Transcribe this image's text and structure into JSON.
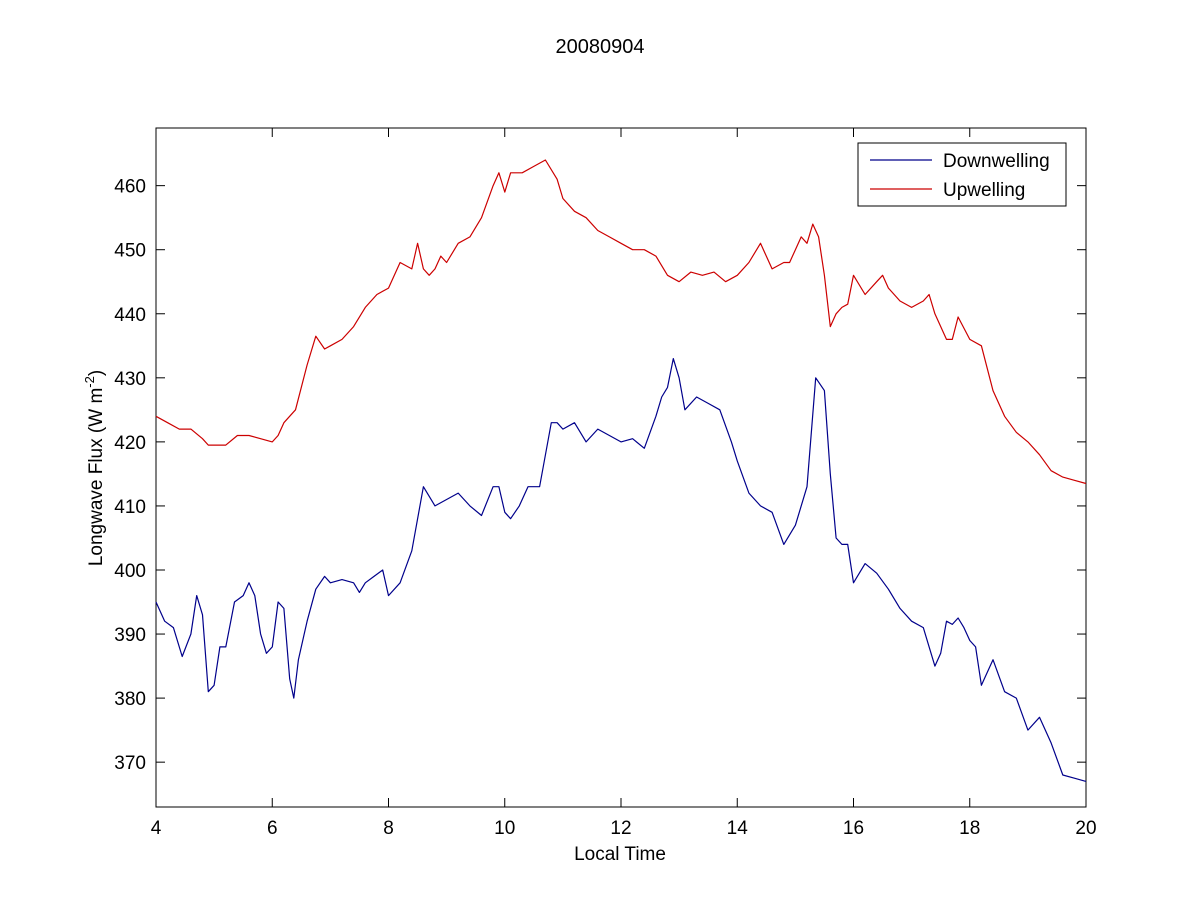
{
  "chart_data": {
    "type": "line",
    "title": "20080904",
    "xlabel": "Local Time",
    "ylabel": {
      "main": "Longwave Flux (W m",
      "sup": "-2",
      "close": ")"
    },
    "xlim": [
      4,
      20
    ],
    "ylim": [
      363,
      469
    ],
    "xticks": [
      4,
      6,
      8,
      10,
      12,
      14,
      16,
      18,
      20
    ],
    "yticks": [
      370,
      380,
      390,
      400,
      410,
      420,
      430,
      440,
      450,
      460
    ],
    "grid": false,
    "legend_position": "top-right",
    "series": [
      {
        "name": "Downwelling",
        "color": "#00008b",
        "x": [
          4.0,
          4.15,
          4.3,
          4.45,
          4.6,
          4.7,
          4.8,
          4.9,
          5.0,
          5.1,
          5.2,
          5.35,
          5.5,
          5.6,
          5.7,
          5.8,
          5.9,
          6.0,
          6.1,
          6.2,
          6.3,
          6.37,
          6.45,
          6.6,
          6.75,
          6.9,
          7.0,
          7.2,
          7.4,
          7.5,
          7.6,
          7.75,
          7.9,
          8.0,
          8.2,
          8.4,
          8.6,
          8.8,
          9.0,
          9.2,
          9.4,
          9.6,
          9.8,
          9.9,
          10.0,
          10.1,
          10.25,
          10.4,
          10.6,
          10.8,
          10.9,
          11.0,
          11.2,
          11.4,
          11.6,
          11.8,
          12.0,
          12.2,
          12.4,
          12.6,
          12.7,
          12.8,
          12.9,
          13.0,
          13.1,
          13.3,
          13.5,
          13.7,
          13.9,
          14.0,
          14.2,
          14.4,
          14.6,
          14.8,
          15.0,
          15.2,
          15.35,
          15.5,
          15.6,
          15.7,
          15.8,
          15.9,
          16.0,
          16.2,
          16.4,
          16.6,
          16.8,
          17.0,
          17.2,
          17.4,
          17.5,
          17.6,
          17.7,
          17.8,
          17.9,
          18.0,
          18.1,
          18.2,
          18.3,
          18.4,
          18.6,
          18.8,
          19.0,
          19.2,
          19.4,
          19.6,
          19.8,
          20.0
        ],
        "y": [
          395,
          392,
          391,
          386.5,
          390,
          396,
          393,
          381,
          382,
          388,
          388,
          395,
          396,
          398,
          396,
          390,
          387,
          388,
          395,
          394,
          383,
          380,
          386,
          392,
          397,
          399,
          398,
          398.5,
          398,
          396.5,
          398,
          399,
          400,
          396,
          398,
          403,
          413,
          410,
          411,
          412,
          410,
          408.5,
          413,
          413,
          409,
          408,
          410,
          413,
          413,
          423,
          423,
          422,
          423,
          420,
          422,
          421,
          420,
          420.5,
          419,
          424,
          427,
          428.5,
          433,
          430,
          425,
          427,
          426,
          425,
          420,
          417,
          412,
          410,
          409,
          404,
          407,
          413,
          430,
          428,
          415,
          405,
          404,
          404,
          398,
          401,
          399.5,
          397,
          394,
          392,
          391,
          385,
          387,
          392,
          391.5,
          392.5,
          391,
          389,
          388,
          382,
          384,
          386,
          381,
          380,
          375,
          377,
          373,
          368,
          367.5,
          367
        ]
      },
      {
        "name": "Upwelling",
        "color": "#cc0000",
        "x": [
          4.0,
          4.2,
          4.4,
          4.6,
          4.8,
          4.9,
          5.0,
          5.2,
          5.4,
          5.6,
          5.8,
          6.0,
          6.1,
          6.2,
          6.4,
          6.6,
          6.75,
          6.9,
          7.0,
          7.2,
          7.4,
          7.6,
          7.8,
          8.0,
          8.2,
          8.4,
          8.5,
          8.6,
          8.7,
          8.8,
          8.9,
          9.0,
          9.2,
          9.4,
          9.6,
          9.8,
          9.9,
          10.0,
          10.1,
          10.3,
          10.5,
          10.7,
          10.9,
          11.0,
          11.2,
          11.4,
          11.6,
          11.8,
          12.0,
          12.2,
          12.4,
          12.6,
          12.8,
          13.0,
          13.2,
          13.4,
          13.6,
          13.8,
          14.0,
          14.2,
          14.4,
          14.6,
          14.8,
          14.9,
          15.0,
          15.1,
          15.2,
          15.3,
          15.4,
          15.5,
          15.6,
          15.7,
          15.8,
          15.9,
          16.0,
          16.2,
          16.4,
          16.5,
          16.6,
          16.8,
          17.0,
          17.2,
          17.3,
          17.4,
          17.6,
          17.7,
          17.8,
          18.0,
          18.2,
          18.4,
          18.6,
          18.8,
          19.0,
          19.2,
          19.4,
          19.6,
          19.8,
          20.0
        ],
        "y": [
          424,
          423,
          422,
          422,
          420.5,
          419.5,
          419.5,
          419.5,
          421,
          421,
          420.5,
          420,
          421,
          423,
          425,
          432,
          436.5,
          434.5,
          435,
          436,
          438,
          441,
          443,
          444,
          448,
          447,
          451,
          447,
          446,
          447,
          449,
          448,
          451,
          452,
          455,
          460,
          462,
          459,
          462,
          462,
          463,
          464,
          461,
          458,
          456,
          455,
          453,
          452,
          451,
          450,
          450,
          449,
          446,
          445,
          446.5,
          446,
          446.5,
          445,
          446,
          448,
          451,
          447,
          448,
          448,
          450,
          452,
          451,
          454,
          452,
          446,
          438,
          440,
          441,
          441.5,
          446,
          443,
          445,
          446,
          444,
          442,
          441,
          442,
          443,
          440,
          436,
          436,
          439.5,
          436,
          435,
          428,
          424,
          421.5,
          420,
          418,
          415.5,
          414.5,
          414,
          413.5
        ]
      }
    ]
  }
}
